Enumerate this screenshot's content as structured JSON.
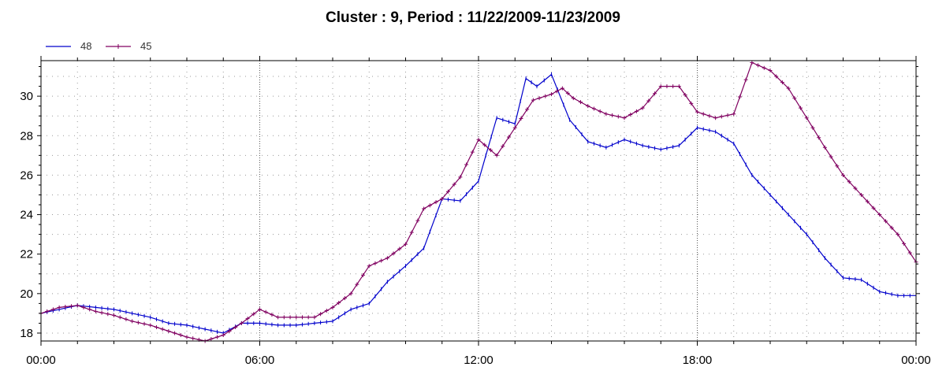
{
  "chart_data": {
    "type": "line",
    "title": "Cluster : 9, Period : 11/22/2009-11/23/2009",
    "xlabel": "",
    "ylabel": "",
    "x_ticks": [
      "00:00",
      "06:00",
      "12:00",
      "18:00",
      "00:00"
    ],
    "y_ticks": [
      "18",
      "20",
      "22",
      "24",
      "26",
      "28",
      "30"
    ],
    "xlim_hours": [
      0,
      24
    ],
    "ylim": [
      17.6,
      31.8
    ],
    "grid": true,
    "legend_position": "top-left",
    "colors": {
      "48": "#0000cc",
      "45": "#800060"
    },
    "series": [
      {
        "name": "48",
        "marker": "tick",
        "points": [
          [
            0,
            19.0
          ],
          [
            0.5,
            19.2
          ],
          [
            1,
            19.4
          ],
          [
            1.5,
            19.3
          ],
          [
            2,
            19.2
          ],
          [
            2.5,
            19.0
          ],
          [
            3,
            18.8
          ],
          [
            3.5,
            18.5
          ],
          [
            4,
            18.4
          ],
          [
            4.5,
            18.2
          ],
          [
            5,
            18.0
          ],
          [
            5.5,
            18.5
          ],
          [
            6,
            18.5
          ],
          [
            6.5,
            18.4
          ],
          [
            7,
            18.4
          ],
          [
            7.5,
            18.5
          ],
          [
            8,
            18.6
          ],
          [
            8.5,
            19.2
          ],
          [
            9,
            19.5
          ],
          [
            9.5,
            20.6
          ],
          [
            10,
            21.4
          ],
          [
            10.5,
            22.3
          ],
          [
            11,
            24.8
          ],
          [
            11.5,
            24.7
          ],
          [
            12,
            25.7
          ],
          [
            12.2,
            27.0
          ],
          [
            12.5,
            28.9
          ],
          [
            13,
            28.6
          ],
          [
            13.3,
            30.9
          ],
          [
            13.6,
            30.5
          ],
          [
            14,
            31.1
          ],
          [
            14.5,
            28.8
          ],
          [
            15,
            27.7
          ],
          [
            15.5,
            27.4
          ],
          [
            16,
            27.8
          ],
          [
            16.5,
            27.5
          ],
          [
            17,
            27.3
          ],
          [
            17.5,
            27.5
          ],
          [
            18,
            28.4
          ],
          [
            18.5,
            28.2
          ],
          [
            19,
            27.6
          ],
          [
            19.5,
            26.0
          ],
          [
            20,
            25.0
          ],
          [
            20.5,
            24.0
          ],
          [
            21,
            23.0
          ],
          [
            21.5,
            21.8
          ],
          [
            22,
            20.8
          ],
          [
            22.5,
            20.7
          ],
          [
            23,
            20.1
          ],
          [
            23.5,
            19.9
          ],
          [
            24,
            19.9
          ]
        ]
      },
      {
        "name": "45",
        "marker": "plus",
        "points": [
          [
            0,
            19.0
          ],
          [
            0.5,
            19.3
          ],
          [
            1,
            19.4
          ],
          [
            1.5,
            19.1
          ],
          [
            2,
            18.9
          ],
          [
            2.5,
            18.6
          ],
          [
            3,
            18.4
          ],
          [
            3.5,
            18.1
          ],
          [
            4,
            17.8
          ],
          [
            4.5,
            17.6
          ],
          [
            5,
            17.9
          ],
          [
            5.5,
            18.5
          ],
          [
            6,
            19.2
          ],
          [
            6.5,
            18.8
          ],
          [
            7,
            18.8
          ],
          [
            7.5,
            18.8
          ],
          [
            8,
            19.3
          ],
          [
            8.5,
            20.0
          ],
          [
            9,
            21.4
          ],
          [
            9.5,
            21.8
          ],
          [
            10,
            22.5
          ],
          [
            10.5,
            24.3
          ],
          [
            11,
            24.8
          ],
          [
            11.5,
            25.9
          ],
          [
            12,
            27.8
          ],
          [
            12.5,
            27.0
          ],
          [
            13,
            28.4
          ],
          [
            13.5,
            29.8
          ],
          [
            14,
            30.1
          ],
          [
            14.3,
            30.4
          ],
          [
            14.6,
            29.9
          ],
          [
            15,
            29.5
          ],
          [
            15.5,
            29.1
          ],
          [
            16,
            28.9
          ],
          [
            16.5,
            29.4
          ],
          [
            17,
            30.5
          ],
          [
            17.5,
            30.5
          ],
          [
            18,
            29.2
          ],
          [
            18.5,
            28.9
          ],
          [
            19,
            29.1
          ],
          [
            19.5,
            31.7
          ],
          [
            20,
            31.3
          ],
          [
            20.5,
            30.4
          ],
          [
            21,
            28.9
          ],
          [
            21.5,
            27.4
          ],
          [
            22,
            26.0
          ],
          [
            22.5,
            25.0
          ],
          [
            23,
            24.0
          ],
          [
            23.5,
            23.0
          ],
          [
            24,
            21.6
          ]
        ]
      }
    ]
  }
}
